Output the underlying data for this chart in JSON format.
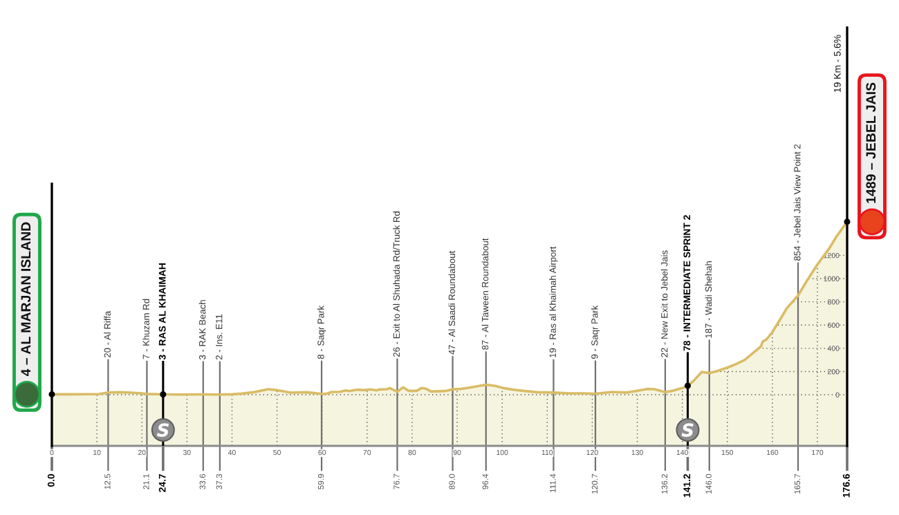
{
  "chart_data": {
    "type": "area",
    "x": [
      0,
      5,
      10.5,
      12.5,
      15.1,
      17.6,
      20,
      21.1,
      24.7,
      28,
      33.6,
      37.3,
      40,
      42.2,
      44.8,
      48.1,
      49.9,
      53.0,
      56.6,
      59.9,
      60.9,
      62.2,
      64.0,
      65.3,
      66.0,
      67.8,
      69.3,
      70.8,
      72.1,
      72.8,
      74.4,
      75.0,
      76.7,
      78.0,
      79.2,
      81.0,
      82.1,
      83.1,
      84.2,
      87.3,
      89.0,
      90.8,
      93.4,
      96.4,
      98.5,
      100.5,
      103.6,
      107.7,
      111.4,
      114.9,
      118.0,
      120.7,
      124.4,
      127.6,
      130.2,
      132.2,
      133.8,
      136.2,
      138.0,
      140.0,
      141.2,
      142.5,
      144.3,
      146.0,
      147.7,
      150.0,
      151.6,
      153.8,
      155.8,
      157.5,
      157.8,
      158.7,
      160.0,
      161.6,
      163.2,
      165.7,
      167.6,
      169.9,
      172.7,
      174.2,
      176.6
    ],
    "series": [
      {
        "color": "#f5f4df",
        "values": [
          4,
          4,
          6,
          20,
          22,
          18,
          12,
          7,
          3,
          2,
          3,
          2,
          4,
          10,
          22,
          48,
          40,
          18,
          22,
          8,
          8,
          24,
          26,
          38,
          32,
          44,
          40,
          46,
          38,
          46,
          48,
          58,
          26,
          64,
          34,
          34,
          58,
          52,
          28,
          32,
          47,
          50,
          66,
          87,
          76,
          56,
          38,
          22,
          19,
          12,
          12,
          9,
          24,
          19,
          36,
          50,
          48,
          22,
          36,
          58,
          78,
          120,
          196,
          187,
          204,
          234,
          259,
          299,
          362,
          417,
          455,
          477,
          540,
          640,
          745,
          854,
          977,
          1116,
          1264,
          1360,
          1489
        ]
      },
      {
        "type": "scatter",
        "color": "#000000",
        "marker": "circle",
        "x": [
          0,
          24.7,
          141.2,
          176.6
        ],
        "values": [
          4,
          3,
          78,
          1489
        ]
      }
    ],
    "bands": [
      {
        "axis": "y",
        "from": -440,
        "to": 0,
        "color": "#f5f4df"
      }
    ],
    "xlim": [
      0,
      176.6
    ],
    "xticks": [
      0,
      10,
      20,
      30,
      40,
      50,
      60,
      70,
      80,
      90,
      100,
      110,
      120,
      130,
      140,
      150,
      160,
      170
    ],
    "x2lim": [
      0,
      176.6
    ],
    "x2ticks": [
      {
        "value": 0,
        "label": "0.0"
      },
      12.5,
      21.1,
      24.7,
      33.6,
      37.3,
      59.9,
      76.7,
      {
        "value": 89,
        "label": "89.0"
      },
      96.4,
      111.4,
      120.7,
      136.2,
      141.2,
      {
        "value": 146,
        "label": "146.0"
      },
      165.7,
      176.6
    ],
    "ylim": [
      -440,
      3160
    ],
    "yticks": [
      0,
      200,
      400,
      600,
      800,
      1000,
      1200
    ],
    "grid": true,
    "ref_lines": [
      {
        "axis": "x",
        "value": 0,
        "color": "#000000"
      },
      {
        "axis": "x",
        "value": 12.5,
        "label": "20 - Al Riffa",
        "color": "#707070"
      },
      {
        "axis": "x",
        "value": 21.1,
        "label": "7 - Khuzam Rd",
        "color": "#707070"
      },
      {
        "axis": "x",
        "value": 24.7,
        "label": "3 - RAS AL KHAIMAH",
        "color": "#000000"
      },
      {
        "axis": "x",
        "value": 33.6,
        "label": "3 - RAK Beach",
        "color": "#707070"
      },
      {
        "axis": "x",
        "value": 37.3,
        "label": "2 - Ins. E11",
        "color": "#707070"
      },
      {
        "axis": "x",
        "value": 59.9,
        "label": "8 - Saqr Park",
        "color": "#707070"
      },
      {
        "axis": "x",
        "value": 76.7,
        "label": "26 - Exit to Al Shuhada Rd/Truck Rd",
        "color": "#707070"
      },
      {
        "axis": "x",
        "value": 89.0,
        "label": "47 - Al Saadi Roundabout",
        "color": "#707070"
      },
      {
        "axis": "x",
        "value": 96.4,
        "label": "87 - Al Taween Roundabout",
        "color": "#707070"
      },
      {
        "axis": "x",
        "value": 111.4,
        "label": "19 - Ras al Khaimah Airport",
        "color": "#707070"
      },
      {
        "axis": "x",
        "value": 120.7,
        "label": "9 - Saqr Park",
        "color": "#707070"
      },
      {
        "axis": "x",
        "value": 136.2,
        "label": "22 - New Exit to Jebel Jais",
        "color": "#707070"
      },
      {
        "axis": "x",
        "value": 141.2,
        "label": "78 - INTERMEDIATE SPRINT 2",
        "color": "#000000"
      },
      {
        "axis": "x",
        "value": 146.0,
        "label": "187 - Wadi Shehah",
        "color": "#707070"
      },
      {
        "axis": "x",
        "value": 165.7,
        "label": "854 - Jebel Jais View Point 2",
        "color": "#707070"
      }
    ],
    "annotations": [
      {
        "text": "4 – AL MARJAN ISLAND",
        "x": 0,
        "y": 4
      },
      {
        "text": "1489 – JEBEL JAIS",
        "x": 176.6,
        "y": 1489
      },
      "19 Km - 5.6%"
    ]
  }
}
